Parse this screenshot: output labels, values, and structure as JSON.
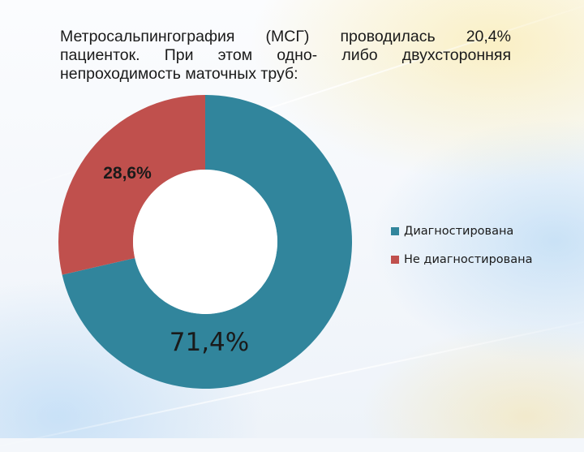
{
  "slide": {
    "title": "Метросальпингография (МСГ) проводилась 20,4% пациенток. При этом одно- либо двухсторонняя непроходимость маточных труб:"
  },
  "chart_data": {
    "type": "pie",
    "title": "",
    "categories": [
      "Диагностирована",
      "Не диагностирована"
    ],
    "values": [
      71.4,
      28.6
    ],
    "data_labels": [
      "71,4%",
      "28,6%"
    ],
    "colors": [
      "#31859c",
      "#c0504d"
    ],
    "donut": true,
    "legend_position": "right"
  }
}
